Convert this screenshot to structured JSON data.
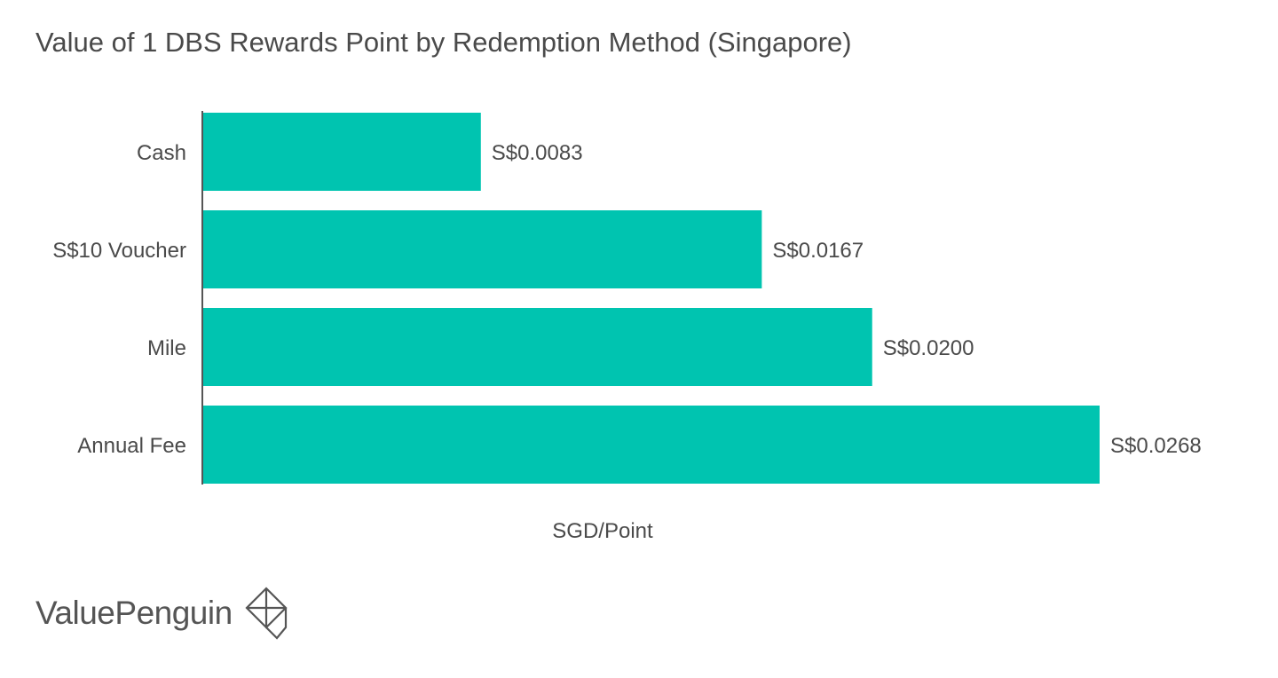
{
  "chart_data": {
    "type": "bar",
    "orientation": "horizontal",
    "title": "Value of 1 DBS Rewards Point by Redemption Method (Singapore)",
    "xlabel": "SGD/Point",
    "ylabel": "",
    "categories": [
      "Cash",
      "S$10 Voucher",
      "Mile",
      "Annual Fee"
    ],
    "values": [
      0.0083,
      0.0167,
      0.02,
      0.0268
    ],
    "data_labels": [
      "S$0.0083",
      "S$0.0167",
      "S$0.0200",
      "S$0.0268"
    ],
    "xlim": [
      0,
      0.0268
    ],
    "grid": false,
    "legend": "none",
    "bar_color": "#00c4b0"
  },
  "colors": {
    "title": "#4a4a4a",
    "axis": "#555555",
    "label": "#4a4a4a",
    "bar": "#00c4b0",
    "brand": "#555555"
  },
  "brand": {
    "name": "ValuePenguin",
    "logo_icon": "valuepenguin-logo-icon"
  }
}
